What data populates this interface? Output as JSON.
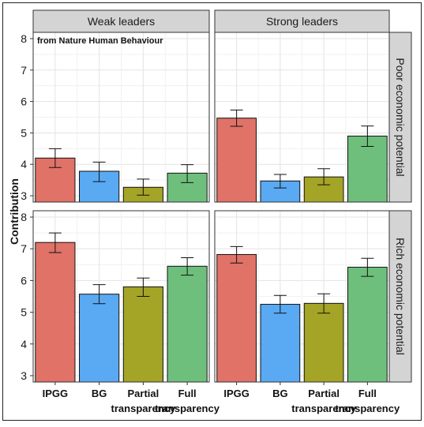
{
  "chart_data": {
    "type": "bar",
    "annotation": "from Nature Human Behaviour",
    "ylabel": "Contribution",
    "xlabel": "",
    "ylim": [
      2.8,
      8.2
    ],
    "yticks": [
      3,
      4,
      5,
      6,
      7,
      8
    ],
    "categories": [
      "IPGG",
      "BG",
      "Partial transparency",
      "Full transparency"
    ],
    "category_label_lines": [
      [
        "IPGG"
      ],
      [
        "BG"
      ],
      [
        "Partial",
        "transparency"
      ],
      [
        "Full",
        "transparency"
      ]
    ],
    "colors": [
      "#e07268",
      "#5aa9f3",
      "#a4a427",
      "#6fbf7c"
    ],
    "grid": true,
    "columns": [
      "Weak leaders",
      "Strong leaders"
    ],
    "rows": [
      "Poor economic potential",
      "Rich economic potential"
    ],
    "panels": [
      {
        "column": "Weak leaders",
        "row": "Poor economic potential",
        "values": [
          4.2,
          3.78,
          3.27,
          3.72
        ],
        "err_low": [
          3.9,
          3.45,
          3.02,
          3.42
        ],
        "err_high": [
          4.5,
          4.07,
          3.53,
          3.99
        ]
      },
      {
        "column": "Strong leaders",
        "row": "Poor economic potential",
        "values": [
          5.47,
          3.47,
          3.6,
          4.9
        ],
        "err_low": [
          5.21,
          3.25,
          3.35,
          4.57
        ],
        "err_high": [
          5.73,
          3.68,
          3.86,
          5.22
        ]
      },
      {
        "column": "Weak leaders",
        "row": "Rich economic potential",
        "values": [
          7.2,
          5.57,
          5.8,
          6.45
        ],
        "err_low": [
          6.88,
          5.27,
          5.5,
          6.17
        ],
        "err_high": [
          7.5,
          5.87,
          6.08,
          6.72
        ]
      },
      {
        "column": "Strong leaders",
        "row": "Rich economic potential",
        "values": [
          6.82,
          5.25,
          5.28,
          6.42
        ],
        "err_low": [
          6.55,
          4.97,
          4.97,
          6.13
        ],
        "err_high": [
          7.07,
          5.53,
          5.58,
          6.7
        ]
      }
    ]
  }
}
